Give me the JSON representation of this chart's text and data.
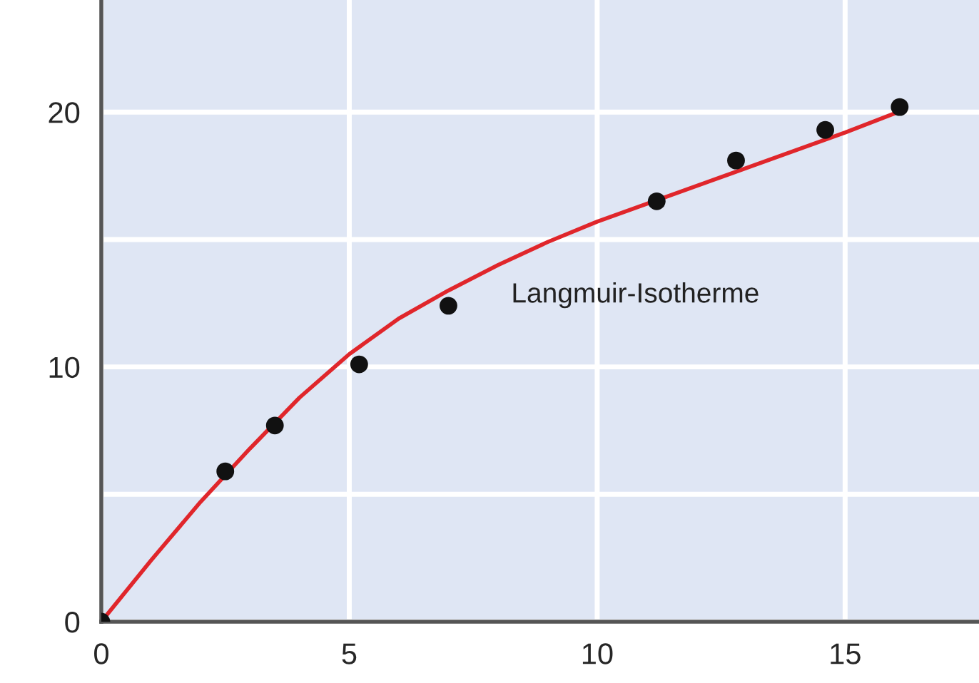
{
  "chart_data": {
    "type": "scatter",
    "xlim": [
      0,
      17.7
    ],
    "ylim": [
      0,
      24.4
    ],
    "xticks": [
      0,
      5,
      10,
      15
    ],
    "yticks": [
      0,
      {
        "value": 5,
        "label": null
      },
      10,
      {
        "value": 15,
        "label": null
      },
      20
    ],
    "grid": true,
    "legend": false,
    "series": [
      {
        "type": "line",
        "color": "#e0262b",
        "marker": "none",
        "line_style": "solid",
        "x": [
          0,
          1,
          2,
          3,
          4,
          5,
          6,
          7,
          8,
          9,
          10,
          11,
          12,
          13,
          14,
          15,
          16.2
        ],
        "values": [
          0,
          2.4,
          4.7,
          6.8,
          8.8,
          10.5,
          11.9,
          13.0,
          14.0,
          14.9,
          15.7,
          16.4,
          17.1,
          17.8,
          18.5,
          19.2,
          20.1
        ]
      },
      {
        "color": "#111111",
        "marker": "circle",
        "x": [
          0,
          2.5,
          3.5,
          5.2,
          7.0,
          11.2,
          12.8,
          14.6,
          16.1
        ],
        "values": [
          0,
          5.9,
          7.7,
          10.1,
          12.4,
          16.5,
          18.1,
          19.3,
          20.2
        ]
      }
    ],
    "annotations": [
      "Langmuir-Isotherme"
    ]
  }
}
